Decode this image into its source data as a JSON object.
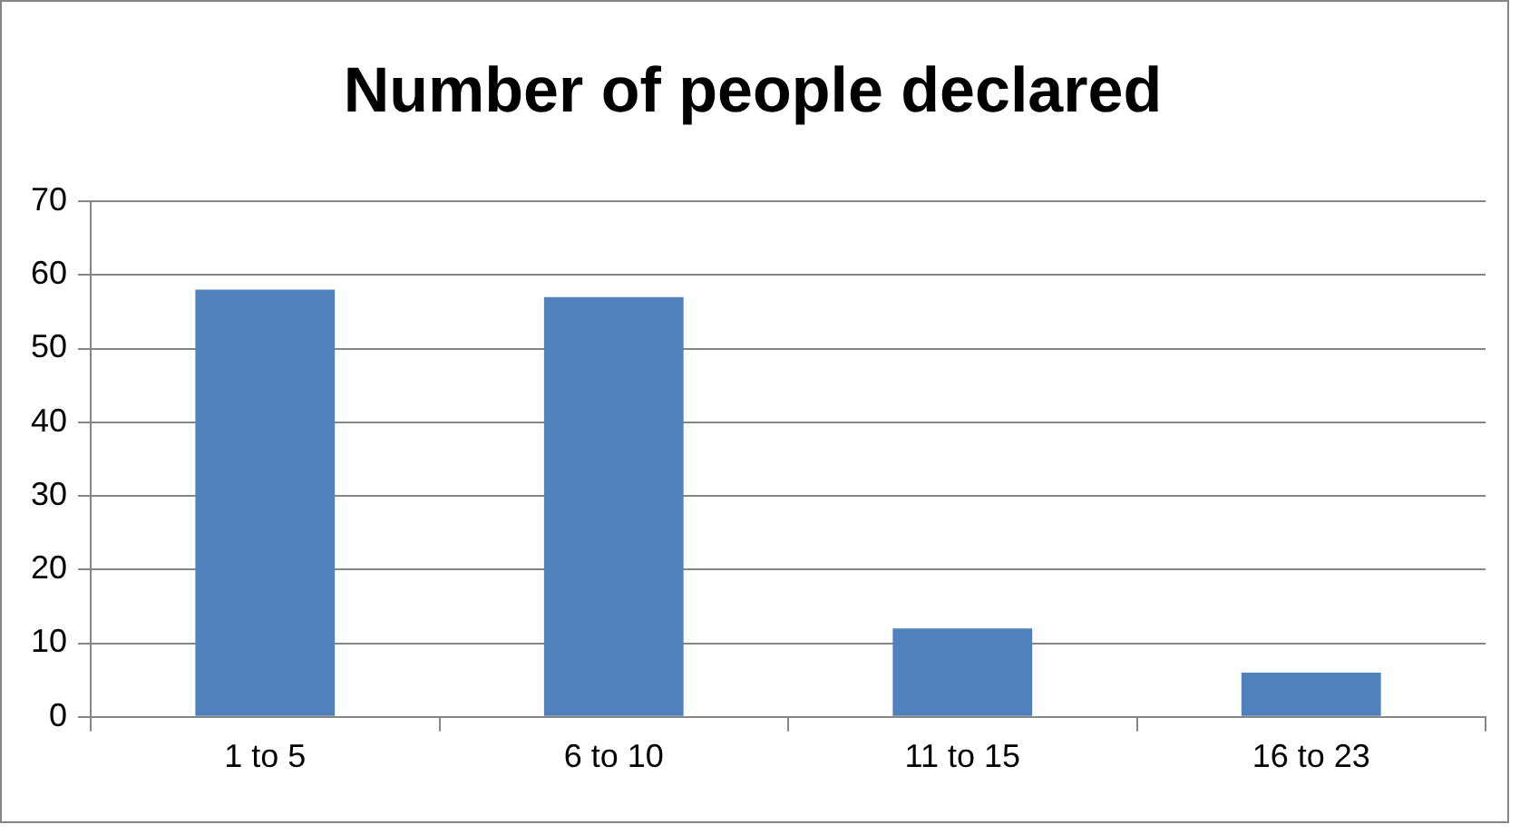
{
  "chart_data": {
    "type": "bar",
    "title": "Number of people declared",
    "categories": [
      "1 to 5",
      "6 to 10",
      "11 to 15",
      "16 to 23"
    ],
    "values": [
      58,
      57,
      12,
      6
    ],
    "color": "#4f81bd",
    "ylim": [
      0,
      70
    ],
    "yticks": [
      0,
      10,
      20,
      30,
      40,
      50,
      60,
      70
    ],
    "grid": "y",
    "legend": false
  }
}
